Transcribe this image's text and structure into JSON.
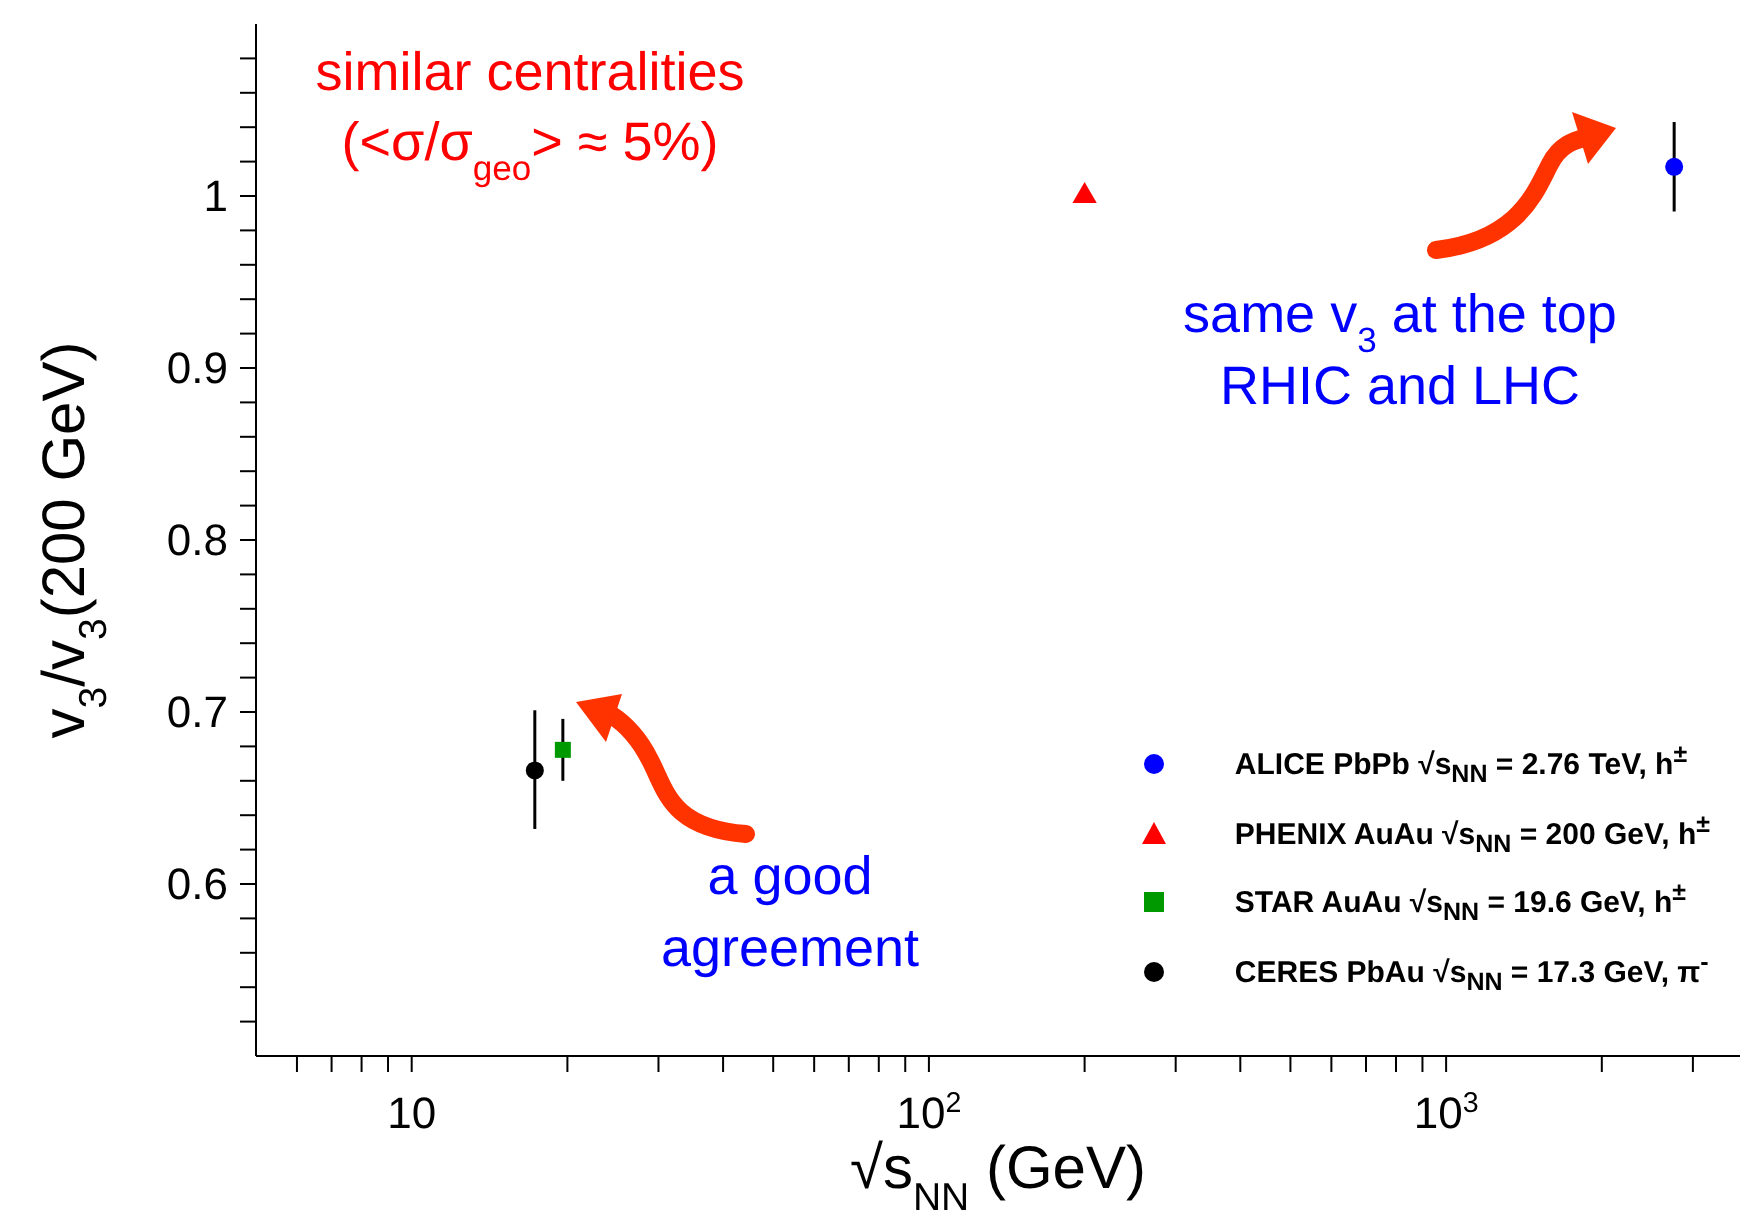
{
  "chart_data": {
    "type": "scatter",
    "xlabel": "√s$_{NN}$ (GeV)",
    "ylabel": "v$_{3}$/v$_{3}$(200 GeV)",
    "log": "x",
    "xlim": [
      5,
      3700
    ],
    "xticks": [
      {
        "value": 6,
        "label": null
      },
      {
        "value": 7,
        "label": null
      },
      {
        "value": 8,
        "label": null
      },
      {
        "value": 9,
        "label": null
      },
      10,
      {
        "value": 20,
        "label": null
      },
      {
        "value": 30,
        "label": null
      },
      {
        "value": 40,
        "label": null
      },
      {
        "value": 50,
        "label": null
      },
      {
        "value": 60,
        "label": null
      },
      {
        "value": 70,
        "label": null
      },
      {
        "value": 80,
        "label": null
      },
      {
        "value": 90,
        "label": null
      },
      {
        "value": 100,
        "label": "10$^{2}$"
      },
      {
        "value": 200,
        "label": null
      },
      {
        "value": 300,
        "label": null
      },
      {
        "value": 400,
        "label": null
      },
      {
        "value": 500,
        "label": null
      },
      {
        "value": 600,
        "label": null
      },
      {
        "value": 700,
        "label": null
      },
      {
        "value": 800,
        "label": null
      },
      {
        "value": 900,
        "label": null
      },
      {
        "value": 1000,
        "label": "10$^{3}$"
      },
      {
        "value": 2000,
        "label": null
      },
      {
        "value": 3000,
        "label": null
      }
    ],
    "ylim": [
      0.5,
      1.1
    ],
    "yticks": [
      {
        "value": 0.52,
        "label": null
      },
      {
        "value": 0.54,
        "label": null
      },
      {
        "value": 0.56,
        "label": null
      },
      {
        "value": 0.58,
        "label": null
      },
      0.6,
      {
        "value": 0.62,
        "label": null
      },
      {
        "value": 0.64,
        "label": null
      },
      {
        "value": 0.66,
        "label": null
      },
      {
        "value": 0.68,
        "label": null
      },
      0.7,
      {
        "value": 0.72,
        "label": null
      },
      {
        "value": 0.74,
        "label": null
      },
      {
        "value": 0.76,
        "label": null
      },
      {
        "value": 0.78,
        "label": null
      },
      0.8,
      {
        "value": 0.82,
        "label": null
      },
      {
        "value": 0.84,
        "label": null
      },
      {
        "value": 0.86,
        "label": null
      },
      {
        "value": 0.88,
        "label": null
      },
      0.9,
      {
        "value": 0.92,
        "label": null
      },
      {
        "value": 0.94,
        "label": null
      },
      {
        "value": 0.96,
        "label": null
      },
      {
        "value": 0.98,
        "label": null
      },
      1,
      {
        "value": 1.02,
        "label": null
      },
      {
        "value": 1.04,
        "label": null
      },
      {
        "value": 1.06,
        "label": null
      },
      {
        "value": 1.08,
        "label": null
      }
    ],
    "legend": "bottom right",
    "series": [
      {
        "name": "ALICE PbPb √s$_{NN}$ = 2.76 TeV, h$^{±}$",
        "color": "#0000ff",
        "marker": "circle",
        "x": [
          2760
        ],
        "values": [
          1.017
        ],
        "errors": [
          [
            0.991,
            1.043
          ]
        ]
      },
      {
        "name": "PHENIX AuAu √s$_{NN}$ = 200 GeV, h$^{±}$",
        "color": "#ff0000",
        "marker": "triangle",
        "x": [
          200
        ],
        "values": [
          1.0
        ]
      },
      {
        "name": "STAR AuAu √s$_{NN}$ = 19.6 GeV, h$^{±}$",
        "color": "#009900",
        "marker": "square",
        "x": [
          19.6
        ],
        "values": [
          0.678
        ],
        "errors": [
          [
            0.66,
            0.696
          ]
        ]
      },
      {
        "name": "CERES PbAu √s$_{NN}$ = 17.3 GeV, π$^{-}$",
        "color": "#000000",
        "marker": "circle",
        "x": [
          17.3
        ],
        "values": [
          0.666
        ],
        "errors": [
          [
            0.632,
            0.701
          ]
        ]
      }
    ],
    "annotations": [
      "similar centralities",
      "(<σ/σ$_{geo}$> ≈ 5%)",
      "same v$_{3}$ at the top",
      "RHIC and LHC",
      "a good",
      "agreement"
    ]
  }
}
